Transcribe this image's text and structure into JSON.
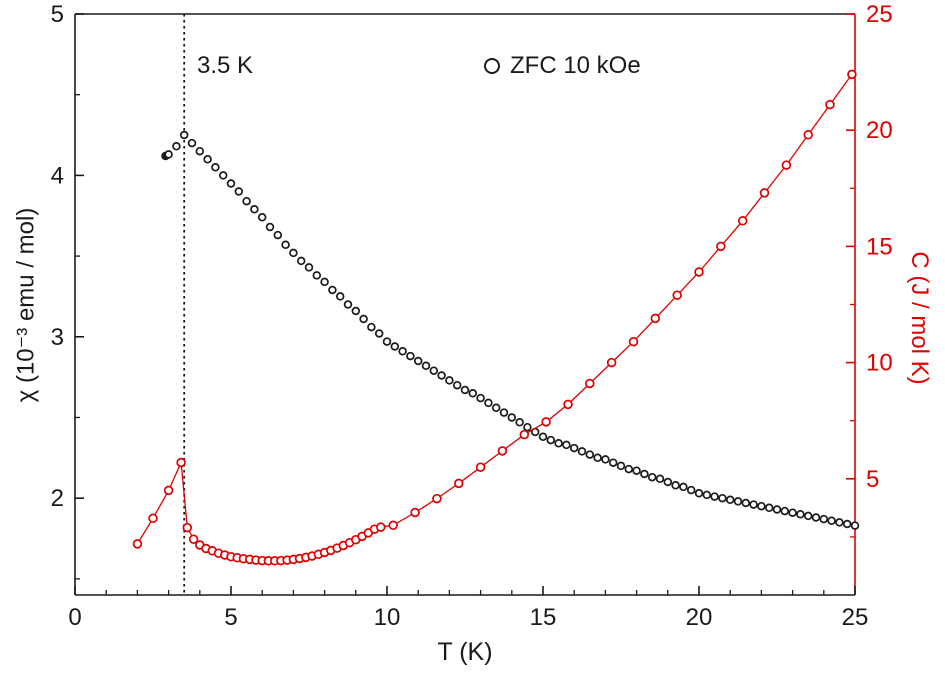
{
  "figure": {
    "xlabel": "T (K)",
    "ylabel_left": "χ (10⁻³ emu / mol)",
    "ylabel_right": "C (J / mol K)",
    "annotation": "3.5 K",
    "legend_label": "ZFC 10 kOe",
    "colors": {
      "susceptibility_series": "#1a1a1a",
      "heat_capacity_series": "#e00000",
      "axis_left": "#1a1a1a",
      "axis_right": "#e00000",
      "background": "#ffffff"
    }
  },
  "chart_data": {
    "type": "scatter",
    "title": "",
    "xlabel": "T (K)",
    "xlim": [
      0,
      25
    ],
    "x_ticks": [
      0,
      5,
      10,
      15,
      20,
      25
    ],
    "x_minor_ticks": [
      1,
      2,
      3,
      4,
      6,
      7,
      8,
      9,
      11,
      12,
      13,
      14,
      16,
      17,
      18,
      19,
      21,
      22,
      23,
      24
    ],
    "grid": false,
    "legend_position": "top-center",
    "left_axis": {
      "label": "χ (10⁻³ emu / mol)",
      "lim": [
        1.4,
        5
      ],
      "ticks": [
        2,
        3,
        4,
        5
      ],
      "minor_ticks": [
        1.5,
        2.5,
        3.5,
        4.5
      ],
      "color": "#1a1a1a"
    },
    "right_axis": {
      "label": "C (J / mol K)",
      "lim": [
        0,
        25
      ],
      "ticks": [
        5,
        10,
        15,
        20,
        25
      ],
      "minor_ticks": [
        2.5,
        7.5,
        12.5,
        17.5,
        22.5
      ],
      "color": "#e00000"
    },
    "vline": {
      "x": 3.5,
      "label": "3.5 K",
      "style": "dotted",
      "color": "#1a1a1a"
    },
    "series": [
      {
        "name": "ZFC 10 kOe",
        "quantity": "magnetic susceptibility χ",
        "axis": "left",
        "color": "#1a1a1a",
        "marker": "open-circle",
        "line": false,
        "filled_first": true,
        "points": [
          [
            2.9,
            4.12
          ],
          [
            3.0,
            4.13
          ],
          [
            3.25,
            4.18
          ],
          [
            3.5,
            4.25
          ],
          [
            3.75,
            4.2
          ],
          [
            4.0,
            4.15
          ],
          [
            4.25,
            4.1
          ],
          [
            4.5,
            4.05
          ],
          [
            4.75,
            4.0
          ],
          [
            5.0,
            3.95
          ],
          [
            5.25,
            3.9
          ],
          [
            5.5,
            3.84
          ],
          [
            5.75,
            3.79
          ],
          [
            6.0,
            3.74
          ],
          [
            6.25,
            3.68
          ],
          [
            6.5,
            3.63
          ],
          [
            6.75,
            3.57
          ],
          [
            7.0,
            3.52
          ],
          [
            7.25,
            3.47
          ],
          [
            7.5,
            3.43
          ],
          [
            7.75,
            3.38
          ],
          [
            8.0,
            3.34
          ],
          [
            8.25,
            3.29
          ],
          [
            8.5,
            3.25
          ],
          [
            8.75,
            3.2
          ],
          [
            9.0,
            3.16
          ],
          [
            9.25,
            3.11
          ],
          [
            9.5,
            3.06
          ],
          [
            9.75,
            3.02
          ],
          [
            10.0,
            2.97
          ],
          [
            10.25,
            2.94
          ],
          [
            10.5,
            2.91
          ],
          [
            10.75,
            2.88
          ],
          [
            11.0,
            2.85
          ],
          [
            11.25,
            2.82
          ],
          [
            11.5,
            2.79
          ],
          [
            11.75,
            2.76
          ],
          [
            12.0,
            2.73
          ],
          [
            12.25,
            2.7
          ],
          [
            12.5,
            2.67
          ],
          [
            12.75,
            2.65
          ],
          [
            13.0,
            2.62
          ],
          [
            13.25,
            2.59
          ],
          [
            13.5,
            2.56
          ],
          [
            13.75,
            2.53
          ],
          [
            14.0,
            2.5
          ],
          [
            14.25,
            2.47
          ],
          [
            14.5,
            2.44
          ],
          [
            14.75,
            2.41
          ],
          [
            15.0,
            2.38
          ],
          [
            15.25,
            2.36
          ],
          [
            15.5,
            2.34
          ],
          [
            15.75,
            2.33
          ],
          [
            16.0,
            2.31
          ],
          [
            16.25,
            2.29
          ],
          [
            16.5,
            2.27
          ],
          [
            16.75,
            2.25
          ],
          [
            17.0,
            2.24
          ],
          [
            17.25,
            2.22
          ],
          [
            17.5,
            2.2
          ],
          [
            17.75,
            2.18
          ],
          [
            18.0,
            2.17
          ],
          [
            18.25,
            2.15
          ],
          [
            18.5,
            2.13
          ],
          [
            18.75,
            2.12
          ],
          [
            19.0,
            2.1
          ],
          [
            19.25,
            2.08
          ],
          [
            19.5,
            2.07
          ],
          [
            19.75,
            2.05
          ],
          [
            20.0,
            2.03
          ],
          [
            20.25,
            2.02
          ],
          [
            20.5,
            2.01
          ],
          [
            20.75,
            2.0
          ],
          [
            21.0,
            1.99
          ],
          [
            21.25,
            1.98
          ],
          [
            21.5,
            1.97
          ],
          [
            21.75,
            1.96
          ],
          [
            22.0,
            1.95
          ],
          [
            22.25,
            1.94
          ],
          [
            22.5,
            1.93
          ],
          [
            22.75,
            1.92
          ],
          [
            23.0,
            1.91
          ],
          [
            23.25,
            1.9
          ],
          [
            23.5,
            1.89
          ],
          [
            23.75,
            1.88
          ],
          [
            24.0,
            1.87
          ],
          [
            24.25,
            1.86
          ],
          [
            24.5,
            1.85
          ],
          [
            24.75,
            1.84
          ],
          [
            25.0,
            1.83
          ]
        ]
      },
      {
        "name": "C",
        "quantity": "heat capacity",
        "axis": "right",
        "color": "#e00000",
        "marker": "open-circle",
        "line": true,
        "filled_first": false,
        "points": [
          [
            2.0,
            2.2
          ],
          [
            2.5,
            3.3
          ],
          [
            3.0,
            4.5
          ],
          [
            3.4,
            5.7
          ],
          [
            3.6,
            2.9
          ],
          [
            3.8,
            2.4
          ],
          [
            4.0,
            2.15
          ],
          [
            4.2,
            2.0
          ],
          [
            4.4,
            1.9
          ],
          [
            4.6,
            1.8
          ],
          [
            4.8,
            1.72
          ],
          [
            5.0,
            1.65
          ],
          [
            5.2,
            1.6
          ],
          [
            5.4,
            1.56
          ],
          [
            5.6,
            1.53
          ],
          [
            5.8,
            1.5
          ],
          [
            6.0,
            1.48
          ],
          [
            6.2,
            1.47
          ],
          [
            6.4,
            1.47
          ],
          [
            6.6,
            1.48
          ],
          [
            6.8,
            1.5
          ],
          [
            7.0,
            1.53
          ],
          [
            7.2,
            1.57
          ],
          [
            7.4,
            1.62
          ],
          [
            7.6,
            1.68
          ],
          [
            7.8,
            1.75
          ],
          [
            8.0,
            1.83
          ],
          [
            8.2,
            1.92
          ],
          [
            8.4,
            2.02
          ],
          [
            8.6,
            2.13
          ],
          [
            8.8,
            2.25
          ],
          [
            9.0,
            2.38
          ],
          [
            9.2,
            2.52
          ],
          [
            9.4,
            2.67
          ],
          [
            9.6,
            2.83
          ],
          [
            9.8,
            2.92
          ],
          [
            10.2,
            3.0
          ],
          [
            10.9,
            3.55
          ],
          [
            11.6,
            4.15
          ],
          [
            12.3,
            4.8
          ],
          [
            13.0,
            5.5
          ],
          [
            13.7,
            6.2
          ],
          [
            14.4,
            6.9
          ],
          [
            15.1,
            7.45
          ],
          [
            15.8,
            8.2
          ],
          [
            16.5,
            9.1
          ],
          [
            17.2,
            10.0
          ],
          [
            17.9,
            10.9
          ],
          [
            18.6,
            11.9
          ],
          [
            19.3,
            12.9
          ],
          [
            20.0,
            13.9
          ],
          [
            20.7,
            15.0
          ],
          [
            21.4,
            16.1
          ],
          [
            22.1,
            17.3
          ],
          [
            22.8,
            18.5
          ],
          [
            23.5,
            19.8
          ],
          [
            24.2,
            21.1
          ],
          [
            24.9,
            22.4
          ]
        ]
      }
    ]
  }
}
